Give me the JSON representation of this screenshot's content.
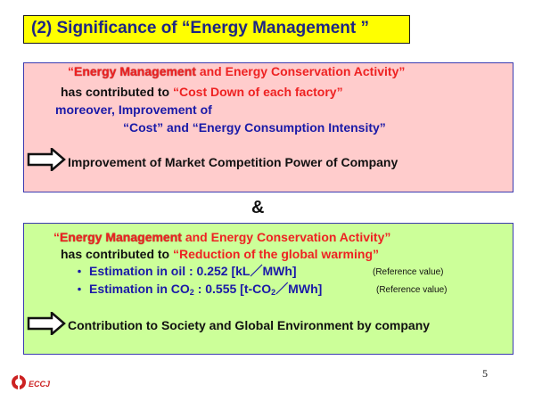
{
  "title": "(2) Significance of “Energy Management ”",
  "box1": {
    "line1_open": "“",
    "line1_em": "Energy Management",
    "line1_rest": " and Energy Conservation Activity”",
    "line2_black": "has contributed to ",
    "line2_red": "“Cost Down of each factory”",
    "line3": "moreover,   Improvement of",
    "line4": "“Cost” and “Energy Consumption Intensity”",
    "conclusion": "Improvement of Market Competition Power of Company"
  },
  "ampersand": "&",
  "box2": {
    "line1_open": "“",
    "line1_em": "Energy Management",
    "line1_rest": " and Energy Conservation Activity”",
    "line2_black": "has contributed to ",
    "line2_red": "“Reduction of the global warming”",
    "bullet_char": "・",
    "oil_label": "Estimation in oil   : 0.252 [kL／MWh]",
    "oil_ref": "(Reference value)",
    "co2_label_a": "Estimation in CO",
    "co2_sub": "2",
    "co2_label_b": " : 0.555 [t-CO",
    "co2_sub2": "2",
    "co2_label_c": "／MWh]",
    "co2_ref": "(Reference value)",
    "conclusion": "Contribution to Society and Global Environment by company"
  },
  "page_number": "5",
  "logo_text": "ECCJ"
}
